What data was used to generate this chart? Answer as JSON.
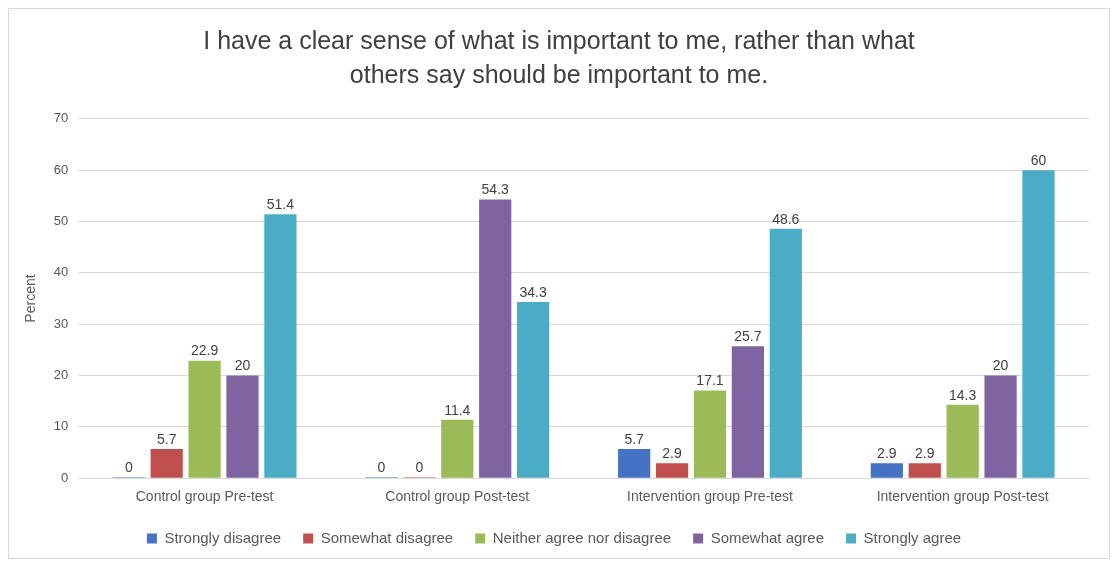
{
  "chart_data": {
    "type": "bar",
    "title": "I have a clear sense of what is important to me, rather than what others say should be important to me.",
    "ylabel": "Percent",
    "categories": [
      "Control group Pre-test",
      "Control group Post-test",
      "Intervention group Pre-test",
      "Intervention group Post-test"
    ],
    "series": [
      {
        "name": "Strongly disagree",
        "color": "#4472c4",
        "values": [
          0,
          0,
          5.7,
          2.9
        ]
      },
      {
        "name": "Somewhat disagree",
        "color": "#c0504d",
        "values": [
          5.7,
          0,
          2.9,
          2.9
        ]
      },
      {
        "name": "Neither agree nor disagree",
        "color": "#9bbb59",
        "values": [
          22.9,
          11.4,
          17.1,
          14.3
        ]
      },
      {
        "name": "Somewhat agree",
        "color": "#8064a2",
        "values": [
          20,
          54.3,
          25.7,
          20
        ]
      },
      {
        "name": "Strongly agree",
        "color": "#4bacc6",
        "values": [
          51.4,
          34.3,
          48.6,
          60
        ]
      }
    ],
    "ylim": [
      0,
      70
    ],
    "yticks": [
      0,
      10,
      20,
      30,
      40,
      50,
      60,
      70
    ],
    "grid": "y",
    "legend": "bottom",
    "data_labels": true
  }
}
